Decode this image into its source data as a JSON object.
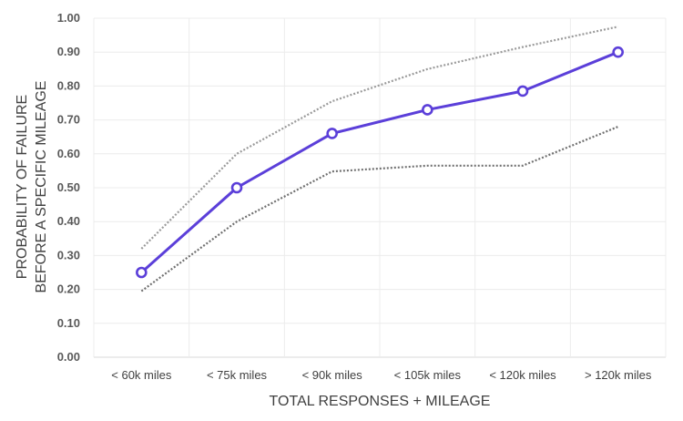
{
  "chart_data": {
    "type": "line",
    "title": "",
    "xlabel": "TOTAL RESPONSES + MILEAGE",
    "ylabel_lines": [
      "PROBABILITY OF FAILURE",
      "BEFORE A SPECIFIC MILEAGE"
    ],
    "categories": [
      "< 60k miles",
      "< 75k miles",
      "< 90k miles",
      "< 105k miles",
      "< 120k miles",
      "> 120k miles"
    ],
    "ylim": [
      0,
      1
    ],
    "yticks": [
      "0.00",
      "0.10",
      "0.20",
      "0.30",
      "0.40",
      "0.50",
      "0.60",
      "0.70",
      "0.80",
      "0.90",
      "1.00"
    ],
    "grid": true,
    "legend": "none",
    "series": [
      {
        "role": "estimate",
        "style": "solid-with-circle-markers",
        "color": "#5b3fd9",
        "values": [
          0.25,
          0.5,
          0.66,
          0.73,
          0.785,
          0.9
        ]
      },
      {
        "role": "upper-bound",
        "style": "dotted",
        "color": "#9a9a9a",
        "values": [
          0.32,
          0.6,
          0.755,
          0.85,
          0.915,
          0.975
        ]
      },
      {
        "role": "lower-bound",
        "style": "dotted",
        "color": "#707070",
        "values": [
          0.195,
          0.4,
          0.548,
          0.565,
          0.565,
          0.68
        ]
      }
    ]
  }
}
